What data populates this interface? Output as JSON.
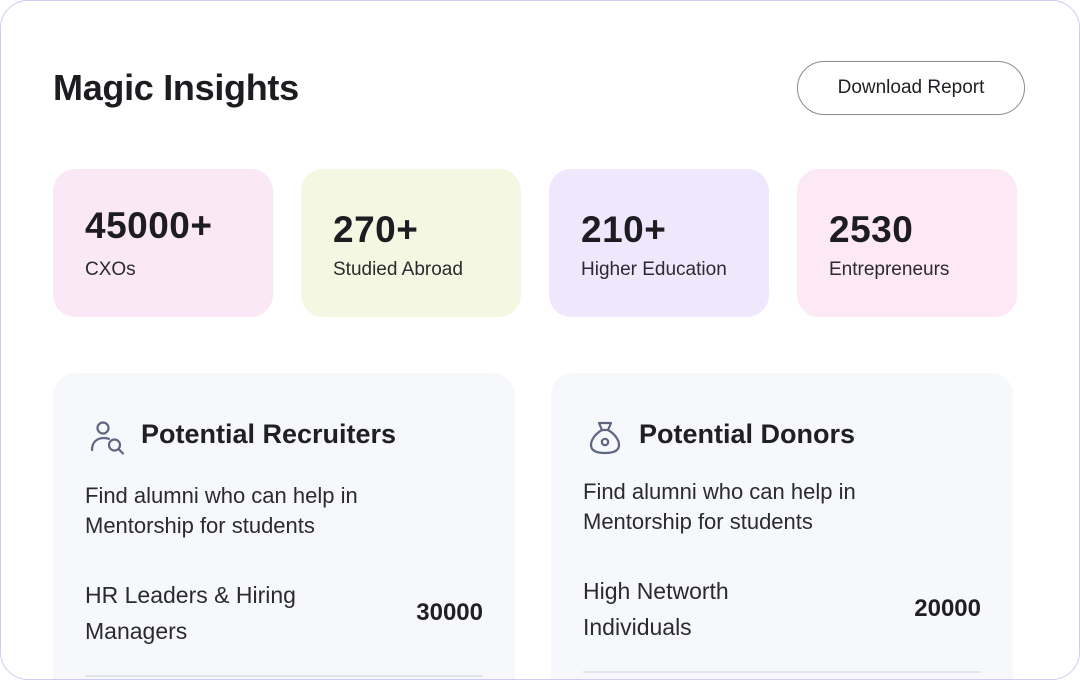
{
  "header": {
    "title": "Magic Insights",
    "download_label": "Download Report"
  },
  "stats": [
    {
      "value": "45000+",
      "label": "CXOs"
    },
    {
      "value": "270+",
      "label": "Studied Abroad"
    },
    {
      "value": "210+",
      "label": "Higher Education"
    },
    {
      "value": "2530",
      "label": "Entrepreneurs"
    }
  ],
  "panels": [
    {
      "icon": "user-search-icon",
      "title": "Potential Recruiters",
      "description": "Find alumni who can help in Mentorship for students",
      "metric_label": "HR Leaders & Hiring Managers",
      "metric_value": "30000"
    },
    {
      "icon": "money-bag-icon",
      "title": "Potential Donors",
      "description": "Find alumni who can help in Mentorship for students",
      "metric_label": "High Networth Individuals",
      "metric_value": "20000"
    }
  ],
  "colors": {
    "border": "#d4c9f2",
    "card_pink": "#fbe8f6",
    "card_green": "#f4f8e2",
    "card_purple": "#efe8fd",
    "panel_bg": "#f7f8fc",
    "icon": "#5f6680"
  }
}
